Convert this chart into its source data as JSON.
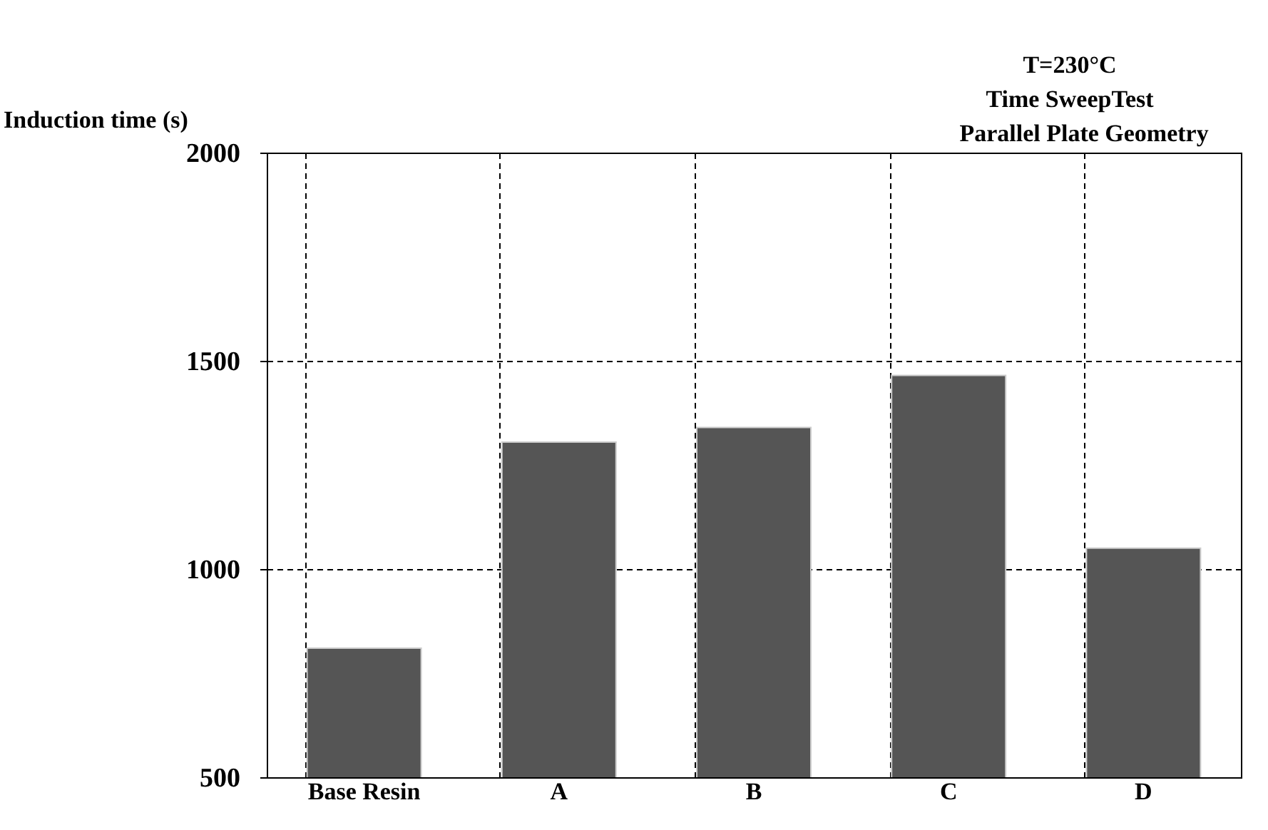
{
  "chart_data": {
    "type": "bar",
    "ylabel": "Induction time (s)",
    "annotations": [
      "T=230°C",
      "Time SweepTest",
      "Parallel Plate Geometry"
    ],
    "categories": [
      "Base Resin",
      "A",
      "B",
      "C",
      "D"
    ],
    "values": [
      810,
      1305,
      1340,
      1465,
      1050
    ],
    "color": "#555555",
    "ylim": [
      500,
      2000
    ],
    "yticks": [
      500,
      1000,
      1500,
      2000
    ],
    "grid": true,
    "line_style": "dashed"
  }
}
